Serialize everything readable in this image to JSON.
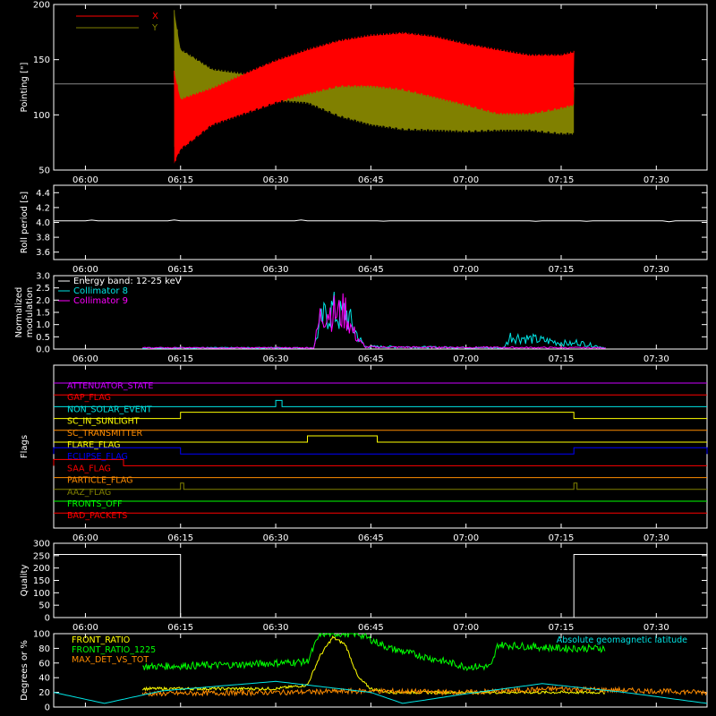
{
  "time_ticks": [
    "06:00",
    "06:15",
    "06:30",
    "06:45",
    "07:00",
    "07:15",
    "07:30"
  ],
  "colors": {
    "background": "#000000",
    "axes": "#ffffff",
    "red": "#ff0000",
    "olive": "#808000",
    "cyan": "#00e5e5",
    "magenta": "#ff00ff",
    "yellow": "#ffff00",
    "green": "#00ff00",
    "orange": "#ff8c00",
    "blue": "#0000ff",
    "purple": "#cc00ff"
  },
  "chart_data": [
    {
      "type": "line",
      "ylabel": "Pointing [\"]",
      "ylim": [
        50,
        200
      ],
      "yticks": [
        50,
        100,
        150,
        200
      ],
      "xlim": [
        "05:55",
        "07:38"
      ],
      "legend": {
        "placement": "top-left",
        "entries": [
          "X",
          "Y"
        ]
      },
      "series": [
        {
          "name": "X",
          "color": "#ff0000",
          "x": [
            "06:14",
            "06:15",
            "06:20",
            "06:25",
            "06:30",
            "06:35",
            "06:40",
            "06:45",
            "06:50",
            "06:55",
            "07:00",
            "07:05",
            "07:10",
            "07:15",
            "07:17"
          ],
          "low": [
            55,
            68,
            90,
            100,
            110,
            118,
            125,
            125,
            122,
            115,
            108,
            100,
            100,
            105,
            108
          ],
          "high": [
            140,
            115,
            125,
            138,
            150,
            160,
            168,
            173,
            175,
            172,
            165,
            160,
            155,
            155,
            158
          ]
        },
        {
          "name": "Y",
          "color": "#808000",
          "x": [
            "06:14",
            "06:15",
            "06:20",
            "06:25",
            "06:30",
            "06:35",
            "06:40",
            "06:45",
            "06:50",
            "06:55",
            "07:00",
            "07:05",
            "07:10",
            "07:15",
            "07:17"
          ],
          "low": [
            70,
            78,
            105,
            110,
            112,
            110,
            98,
            90,
            86,
            85,
            84,
            85,
            85,
            82,
            82
          ],
          "high": [
            195,
            160,
            142,
            138,
            135,
            132,
            128,
            130,
            128,
            125,
            122,
            122,
            122,
            123,
            125
          ]
        }
      ],
      "reference_line": 128
    },
    {
      "type": "line",
      "ylabel": "Roll period [s]",
      "ylim": [
        3.5,
        4.5
      ],
      "yticks": [
        3.6,
        3.8,
        4.0,
        4.2,
        4.4
      ],
      "series": [
        {
          "name": "",
          "color": "#ffffff",
          "x": [
            "05:55",
            "07:38"
          ],
          "y": [
            4.02,
            4.02
          ]
        }
      ]
    },
    {
      "type": "line",
      "ylabel": "Normalized modulation",
      "ylim": [
        0,
        3.0
      ],
      "yticks": [
        0.0,
        0.5,
        1.0,
        1.5,
        2.0,
        2.5,
        3.0
      ],
      "legend": {
        "placement": "top-left",
        "entries": [
          "Energy band: 12-25 keV",
          "Collimator 8",
          "Collimator 9"
        ]
      },
      "series": [
        {
          "name": "Collimator 8",
          "color": "#00e5e5",
          "x": [
            "06:09",
            "06:36",
            "06:37",
            "06:38",
            "06:39",
            "06:40",
            "06:41",
            "06:42",
            "06:44",
            "07:06",
            "07:07",
            "07:22"
          ],
          "y": [
            0.05,
            0.05,
            1.6,
            2.2,
            2.5,
            2.0,
            2.4,
            1.5,
            0.1,
            0.05,
            0.8,
            0.05
          ]
        },
        {
          "name": "Collimator 9",
          "color": "#ff00ff",
          "x": [
            "06:09",
            "06:36",
            "06:37",
            "06:38",
            "06:39",
            "06:40",
            "06:41",
            "06:42",
            "06:44",
            "07:22"
          ],
          "y": [
            0.05,
            0.05,
            2.0,
            2.5,
            2.3,
            2.2,
            2.4,
            1.2,
            0.08,
            0.05
          ]
        }
      ]
    },
    {
      "type": "line",
      "ylabel": "Flags",
      "flags": [
        {
          "name": "ATTENUATOR_STATE",
          "color": "#cc00ff",
          "on": []
        },
        {
          "name": "GAP_FLAG",
          "color": "#ff0000",
          "on": []
        },
        {
          "name": "NON_SOLAR_EVENT",
          "color": "#00e5e5",
          "on": [
            [
              "06:30",
              "06:31"
            ]
          ]
        },
        {
          "name": "SC_IN_SUNLIGHT",
          "color": "#ffff00",
          "on": [
            [
              "06:15",
              "07:17"
            ]
          ]
        },
        {
          "name": "SC_TRANSMITTER",
          "color": "#ff8c00",
          "on": []
        },
        {
          "name": "FLARE_FLAG",
          "color": "#ffff00",
          "on": [
            [
              "06:35",
              "06:46"
            ]
          ]
        },
        {
          "name": "ECLIPSE_FLAG",
          "color": "#0000ff",
          "on": [
            [
              "05:55",
              "06:15"
            ],
            [
              "07:17",
              "07:38"
            ]
          ]
        },
        {
          "name": "SAA_FLAG",
          "color": "#ff0000",
          "on": [
            [
              "05:55",
              "06:06"
            ]
          ]
        },
        {
          "name": "PARTICLE_FLAG",
          "color": "#ff8c00",
          "on": []
        },
        {
          "name": "AAZ_FLAG",
          "color": "#808000",
          "on": [
            [
              "06:15",
              "06:15.5"
            ],
            [
              "07:17",
              "07:17.5"
            ]
          ]
        },
        {
          "name": "FRONTS_OFF",
          "color": "#00ff00",
          "on": []
        },
        {
          "name": "BAD_PACKETS",
          "color": "#ff0000",
          "on": []
        }
      ]
    },
    {
      "type": "line",
      "ylabel": "Quality",
      "ylim": [
        0,
        300
      ],
      "yticks": [
        0,
        50,
        100,
        150,
        200,
        250,
        300
      ],
      "series": [
        {
          "name": "",
          "color": "#ffffff",
          "x": [
            "05:55",
            "06:15",
            "06:15",
            "07:17",
            "07:17",
            "07:38"
          ],
          "y": [
            255,
            255,
            0,
            0,
            255,
            255
          ]
        }
      ]
    },
    {
      "type": "line",
      "ylabel": "Degrees or %",
      "ylim": [
        0,
        100
      ],
      "yticks": [
        0,
        20,
        40,
        60,
        80,
        100
      ],
      "legend": {
        "placement": "top-left",
        "entries": [
          "FRONT_RATIO",
          "FRONT_RATIO_1225",
          "MAX_DET_VS_TOT"
        ]
      },
      "annotation": "Absolute geomagnetic latitude",
      "series": [
        {
          "name": "FRONT_RATIO",
          "color": "#ffff00",
          "x": [
            "06:09",
            "06:30",
            "06:35",
            "06:37",
            "06:39",
            "06:41",
            "06:43",
            "06:45",
            "06:48",
            "07:22"
          ],
          "y": [
            25,
            25,
            30,
            70,
            95,
            85,
            40,
            25,
            20,
            20
          ]
        },
        {
          "name": "FRONT_RATIO_1225",
          "color": "#00ff00",
          "x": [
            "06:09",
            "06:25",
            "06:35",
            "06:37",
            "06:43",
            "06:48",
            "07:00",
            "07:04",
            "07:05",
            "07:15",
            "07:22"
          ],
          "y": [
            55,
            58,
            62,
            100,
            100,
            80,
            55,
            55,
            85,
            80,
            80
          ]
        },
        {
          "name": "MAX_DET_VS_TOT",
          "color": "#ff8c00",
          "x": [
            "06:09",
            "06:30",
            "06:45",
            "07:00",
            "07:15",
            "07:38"
          ],
          "y": [
            18,
            20,
            22,
            20,
            25,
            20
          ]
        },
        {
          "name": "Absolute geomagnetic latitude",
          "color": "#00e5e5",
          "x": [
            "05:55",
            "06:03",
            "06:12",
            "06:30",
            "06:45",
            "06:50",
            "07:00",
            "07:12",
            "07:25",
            "07:38"
          ],
          "y": [
            20,
            5,
            22,
            35,
            20,
            5,
            18,
            32,
            20,
            5
          ]
        }
      ]
    }
  ]
}
